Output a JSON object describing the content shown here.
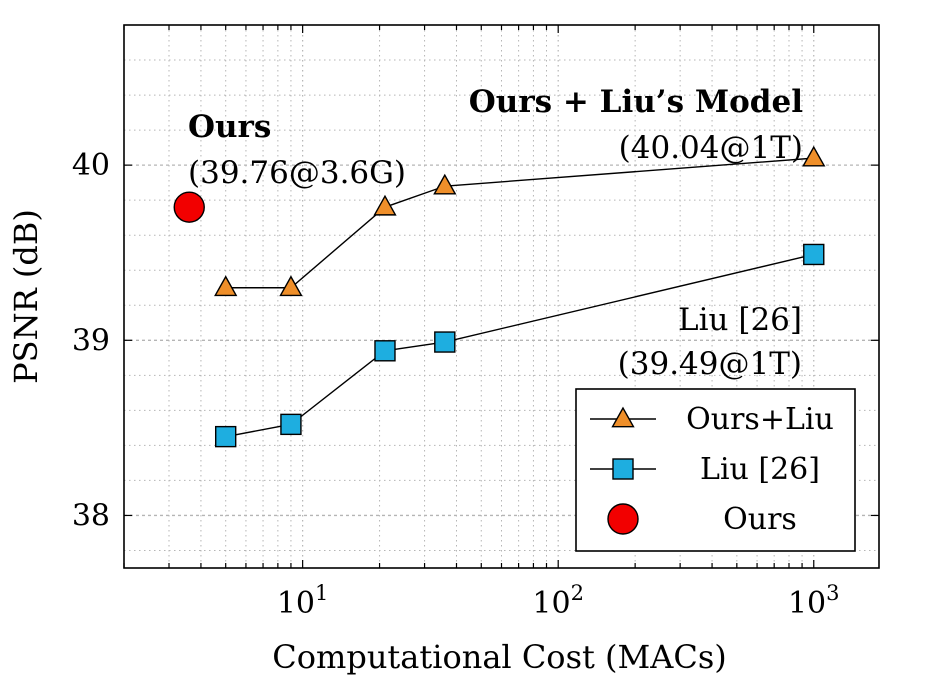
{
  "chart_data": {
    "type": "line",
    "xscale": "log",
    "xlabel": "Computational Cost (MACs)",
    "ylabel": "PSNR (dB)",
    "xlim": [
      2,
      1800
    ],
    "ylim": [
      37.7,
      40.8
    ],
    "grid": true,
    "x_ticks": [
      {
        "value": 10,
        "base": "10",
        "exp": "1"
      },
      {
        "value": 100,
        "base": "10",
        "exp": "2"
      },
      {
        "value": 1000,
        "base": "10",
        "exp": "3"
      }
    ],
    "y_ticks": [
      {
        "value": 38,
        "label": "38"
      },
      {
        "value": 39,
        "label": "39"
      },
      {
        "value": 40,
        "label": "40"
      }
    ],
    "series": [
      {
        "name": "Ours+Liu",
        "marker": "triangle",
        "color": "#ef8f2a",
        "x": [
          5,
          9,
          21,
          36,
          1000
        ],
        "y": [
          39.3,
          39.3,
          39.76,
          39.88,
          40.04
        ]
      },
      {
        "name": "Liu [26]",
        "marker": "square",
        "color": "#1eaee0",
        "x": [
          5,
          9,
          21,
          36,
          1000
        ],
        "y": [
          38.45,
          38.52,
          38.94,
          38.99,
          39.49
        ]
      },
      {
        "name": "Ours",
        "marker": "circle",
        "color": "#f20000",
        "x": [
          3.6
        ],
        "y": [
          39.76
        ]
      }
    ],
    "annotations": [
      {
        "id": "ours_title",
        "text": "Ours",
        "bold": true
      },
      {
        "id": "ours_value",
        "text": "(39.76@3.6G)",
        "bold": false
      },
      {
        "id": "combo_title",
        "text": "Ours + Liu’s Model",
        "bold": true
      },
      {
        "id": "combo_value",
        "text": "(40.04@1T)",
        "bold": false
      },
      {
        "id": "liu_title",
        "text": "Liu [26]",
        "bold": false
      },
      {
        "id": "liu_value",
        "text": "(39.49@1T)",
        "bold": false
      }
    ],
    "legend": {
      "position": "bottom-right",
      "entries": [
        "Ours+Liu",
        "Liu [26]",
        "Ours"
      ]
    }
  }
}
